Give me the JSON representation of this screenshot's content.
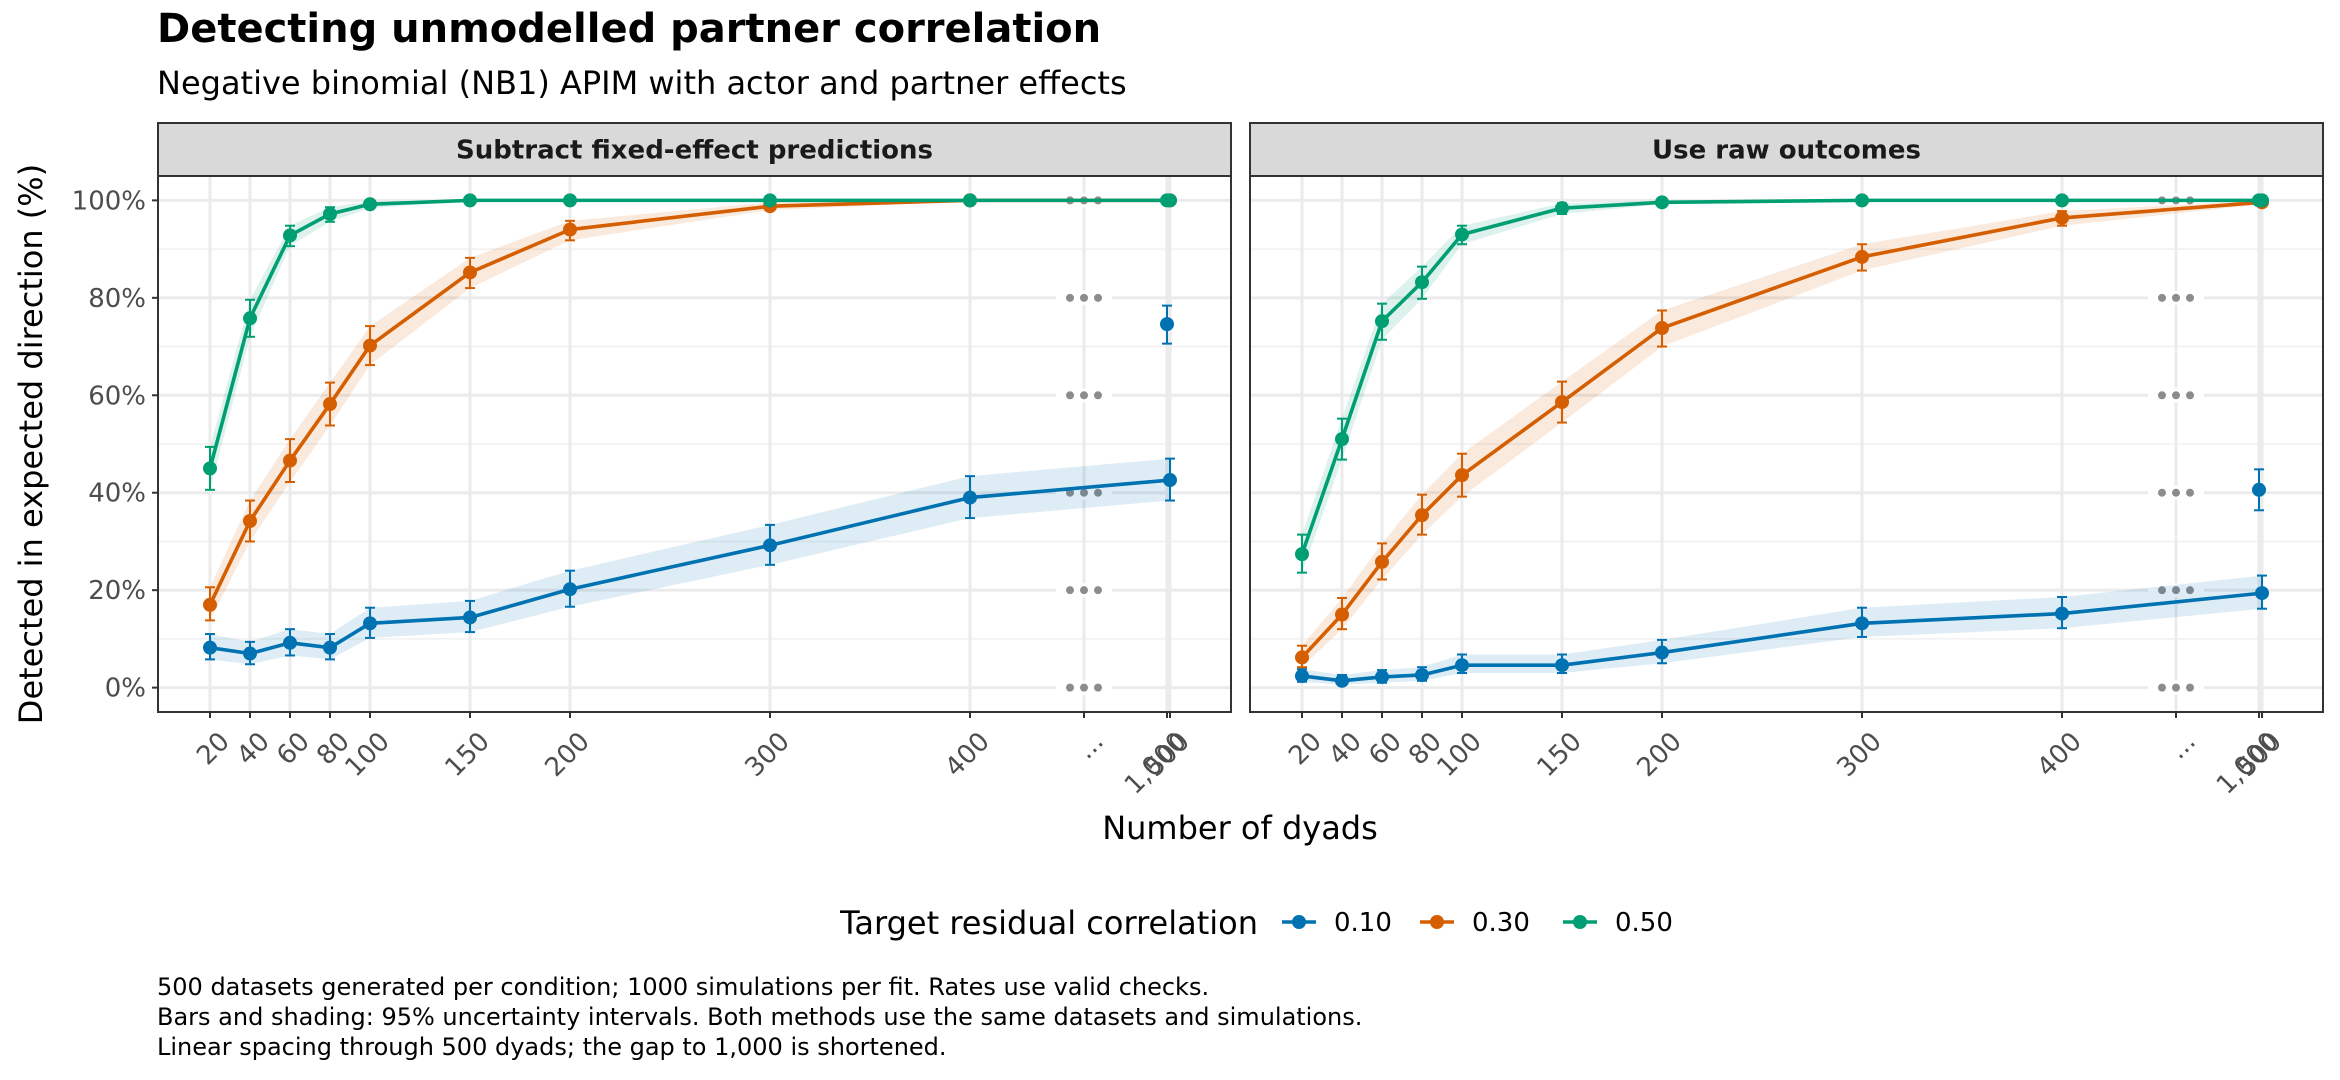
{
  "chart_data": {
    "type": "line",
    "title": "Detecting unmodelled partner correlation",
    "subtitle": "Negative binomial (NB1) APIM with actor and partner effects",
    "xlabel": "Number of dyads",
    "ylabel": "Detected in expected direction (%)",
    "ylim": [
      -5,
      105
    ],
    "y_ticks": [
      0,
      20,
      40,
      60,
      80,
      100
    ],
    "y_tick_labels": [
      "0%",
      "20%",
      "40%",
      "60%",
      "80%",
      "100%"
    ],
    "x_ticks": [
      20,
      40,
      60,
      80,
      100,
      150,
      200,
      300,
      400,
      500,
      "gap",
      1000
    ],
    "x_tick_labels": [
      "20",
      "40",
      "60",
      "80",
      "100",
      "150",
      "200",
      "300",
      "400",
      "500",
      "...",
      "1,000"
    ],
    "legend": {
      "title": "Target residual correlation",
      "position": "bottom"
    },
    "grid": true,
    "facets": [
      {
        "strip": "Subtract fixed-effect predictions",
        "series": [
          {
            "name": "0.10",
            "color": "#0072B2",
            "x": [
              20,
              40,
              60,
              80,
              100,
              150,
              200,
              300,
              400,
              500
            ],
            "values": [
              8.2,
              7.0,
              9.2,
              8.2,
              13.2,
              14.4,
              20.2,
              29.2,
              39.0,
              42.6
            ],
            "lower": [
              5.8,
              4.8,
              6.6,
              5.8,
              10.2,
              11.4,
              16.6,
              25.2,
              34.8,
              38.4
            ],
            "upper": [
              11.0,
              9.4,
              12.0,
              11.0,
              16.4,
              17.8,
              24.0,
              33.4,
              43.4,
              47.0
            ],
            "x_far": 1000,
            "value_far": 74.6,
            "lower_far": 70.6,
            "upper_far": 78.4
          },
          {
            "name": "0.30",
            "color": "#D55E00",
            "x": [
              20,
              40,
              60,
              80,
              100,
              150,
              200,
              300,
              400,
              500
            ],
            "values": [
              17.0,
              34.2,
              46.6,
              58.2,
              70.2,
              85.2,
              94.0,
              98.8,
              100,
              100
            ],
            "lower": [
              13.8,
              30.0,
              42.2,
              53.8,
              66.2,
              82.0,
              91.8,
              98.0,
              99.8,
              99.8
            ],
            "upper": [
              20.6,
              38.4,
              51.0,
              62.6,
              74.2,
              88.2,
              95.8,
              99.6,
              100,
              100
            ]
          },
          {
            "name": "0.50",
            "color": "#009E73",
            "x": [
              20,
              40,
              60,
              80,
              100,
              150,
              200,
              300,
              400,
              500
            ],
            "values": [
              45.0,
              75.8,
              92.8,
              97.2,
              99.2,
              100,
              100,
              100,
              100,
              100
            ],
            "lower": [
              40.6,
              72.0,
              90.6,
              95.6,
              98.4,
              99.8,
              99.8,
              99.8,
              99.8,
              99.8
            ],
            "upper": [
              49.4,
              79.6,
              94.8,
              98.6,
              99.8,
              100,
              100,
              100,
              100,
              100
            ],
            "x_far": 1000,
            "value_far": 100
          }
        ]
      },
      {
        "strip": "Use raw outcomes",
        "series": [
          {
            "name": "0.10",
            "color": "#0072B2",
            "x": [
              20,
              40,
              60,
              80,
              100,
              150,
              200,
              300,
              400,
              500
            ],
            "values": [
              2.4,
              1.4,
              2.2,
              2.6,
              4.6,
              4.6,
              7.2,
              13.2,
              15.2,
              19.4
            ],
            "lower": [
              1.2,
              0.6,
              1.0,
              1.4,
              3.0,
              3.0,
              5.0,
              10.4,
              12.2,
              16.2
            ],
            "upper": [
              3.8,
              2.6,
              3.6,
              4.2,
              6.8,
              6.8,
              9.8,
              16.4,
              18.6,
              23.0
            ],
            "x_far": 1000,
            "value_far": 40.6,
            "lower_far": 36.4,
            "upper_far": 44.8
          },
          {
            "name": "0.30",
            "color": "#D55E00",
            "x": [
              20,
              40,
              60,
              80,
              100,
              150,
              200,
              300,
              400,
              500
            ],
            "values": [
              6.2,
              15.0,
              25.8,
              35.4,
              43.6,
              58.6,
              73.8,
              88.4,
              96.4,
              99.6
            ],
            "lower": [
              4.2,
              12.0,
              22.2,
              31.4,
              39.2,
              54.4,
              70.0,
              85.6,
              94.8,
              99.2
            ],
            "upper": [
              8.6,
              18.4,
              29.6,
              39.6,
              48.0,
              62.8,
              77.4,
              91.0,
              97.8,
              100
            ]
          },
          {
            "name": "0.50",
            "color": "#009E73",
            "x": [
              20,
              40,
              60,
              80,
              100,
              150,
              200,
              300,
              400,
              500
            ],
            "values": [
              27.4,
              51.0,
              75.2,
              83.2,
              93.0,
              98.4,
              99.6,
              100,
              100,
              100
            ],
            "lower": [
              23.6,
              46.8,
              71.4,
              79.8,
              91.0,
              97.2,
              99.2,
              99.8,
              99.8,
              99.8
            ],
            "upper": [
              31.4,
              55.2,
              78.8,
              86.4,
              94.8,
              99.4,
              100,
              100,
              100,
              100
            ],
            "x_far": 1000,
            "value_far": 100
          }
        ]
      }
    ]
  },
  "captions": [
    "500 datasets generated per condition; 1000 simulations per fit. Rates use valid checks.",
    "Bars and shading: 95% uncertainty intervals. Both methods use the same datasets and simulations.",
    "Linear spacing through 500 dyads; the gap to 1,000 is shortened."
  ]
}
